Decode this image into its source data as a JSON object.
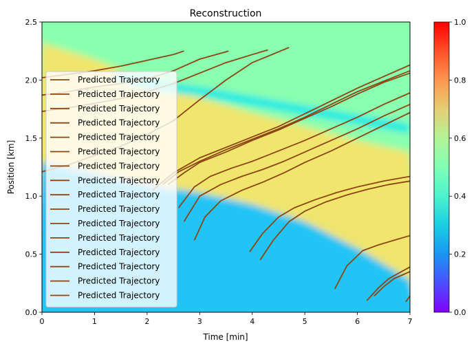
{
  "chart_data": {
    "type": "heatmap",
    "title": "Reconstruction",
    "xlabel": "Time [min]",
    "ylabel": "Position [km]",
    "xlim": [
      0,
      7
    ],
    "ylim": [
      0,
      2.5
    ],
    "xticks": [
      0,
      1,
      2,
      3,
      4,
      5,
      6,
      7
    ],
    "yticks": [
      0.0,
      0.5,
      1.0,
      1.5,
      2.0,
      2.5
    ],
    "colorbar": {
      "colormap": "rainbow",
      "range": [
        0.0,
        1.0
      ],
      "ticks": [
        0.0,
        0.2,
        0.4,
        0.6,
        0.8,
        1.0
      ]
    },
    "heatmap_regions": {
      "top_band_value": 0.52,
      "dense_band_value": 0.72,
      "narrow_dip_value": 0.3,
      "low_region_value": 0.18
    },
    "legend": {
      "placement": "lower left",
      "entries": [
        "Predicted Trajectory",
        "Predicted Trajectory",
        "Predicted Trajectory",
        "Predicted Trajectory",
        "Predicted Trajectory",
        "Predicted Trajectory",
        "Predicted Trajectory",
        "Predicted Trajectory",
        "Predicted Trajectory",
        "Predicted Trajectory",
        "Predicted Trajectory",
        "Predicted Trajectory",
        "Predicted Trajectory",
        "Predicted Trajectory",
        "Predicted Trajectory",
        "Predicted Trajectory"
      ]
    },
    "line_color": "#8B4513",
    "series": [
      {
        "x": [
          0,
          0.5,
          1,
          1.5,
          2,
          2.5,
          2.7
        ],
        "y": [
          2.02,
          2.05,
          2.08,
          2.12,
          2.17,
          2.22,
          2.25
        ]
      },
      {
        "x": [
          0,
          0.5,
          1,
          1.5,
          2,
          2.5,
          3,
          3.55
        ],
        "y": [
          1.87,
          1.9,
          1.94,
          1.97,
          2.01,
          2.08,
          2.18,
          2.25
        ]
      },
      {
        "x": [
          0,
          0.5,
          1,
          1.5,
          2,
          2.5,
          3,
          3.5,
          4,
          4.3
        ],
        "y": [
          1.73,
          1.76,
          1.8,
          1.84,
          1.9,
          1.97,
          2.06,
          2.15,
          2.22,
          2.26
        ]
      },
      {
        "x": [
          0,
          0.5,
          1,
          1.5,
          2,
          2.5,
          3,
          3.5,
          4,
          4.7
        ],
        "y": [
          1.21,
          1.27,
          1.35,
          1.43,
          1.53,
          1.65,
          1.83,
          2.0,
          2.15,
          2.28
        ]
      },
      {
        "x": [
          2.1,
          2.5,
          3,
          3.5,
          4,
          4.5,
          5,
          5.5,
          6,
          6.5,
          7
        ],
        "y": [
          1.05,
          1.2,
          1.33,
          1.42,
          1.51,
          1.6,
          1.71,
          1.82,
          1.93,
          2.03,
          2.13
        ]
      },
      {
        "x": [
          2.3,
          2.6,
          3,
          3.5,
          4,
          4.5,
          5,
          5.5,
          6,
          6.5,
          7
        ],
        "y": [
          1.1,
          1.21,
          1.3,
          1.4,
          1.49,
          1.58,
          1.68,
          1.79,
          1.9,
          1.99,
          2.08
        ]
      },
      {
        "x": [
          2.4,
          2.7,
          3,
          3.5,
          4,
          4.5,
          5,
          5.5,
          6,
          6.5,
          7
        ],
        "y": [
          1.1,
          1.2,
          1.29,
          1.38,
          1.48,
          1.57,
          1.67,
          1.77,
          1.88,
          1.98,
          2.06
        ]
      },
      {
        "x": [
          2.6,
          2.9,
          3.2,
          3.6,
          4,
          4.5,
          5,
          5.5,
          6,
          6.5,
          7
        ],
        "y": [
          0.9,
          1.08,
          1.17,
          1.24,
          1.3,
          1.39,
          1.48,
          1.58,
          1.68,
          1.79,
          1.89
        ]
      },
      {
        "x": [
          2.7,
          3,
          3.4,
          3.8,
          4.2,
          4.6,
          5,
          5.5,
          6,
          6.5,
          7
        ],
        "y": [
          0.78,
          1.0,
          1.1,
          1.17,
          1.23,
          1.3,
          1.38,
          1.48,
          1.58,
          1.69,
          1.79
        ]
      },
      {
        "x": [
          2.9,
          3.1,
          3.4,
          3.8,
          4.2,
          4.6,
          5,
          5.5,
          6,
          6.5,
          7
        ],
        "y": [
          0.62,
          0.82,
          0.96,
          1.05,
          1.12,
          1.2,
          1.29,
          1.39,
          1.5,
          1.61,
          1.72
        ]
      },
      {
        "x": [
          3.95,
          4.2,
          4.5,
          4.8,
          5.2,
          5.6,
          6,
          6.5,
          7
        ],
        "y": [
          0.52,
          0.68,
          0.82,
          0.9,
          0.97,
          1.03,
          1.08,
          1.13,
          1.17
        ]
      },
      {
        "x": [
          4.15,
          4.4,
          4.7,
          5,
          5.4,
          5.8,
          6.2,
          6.6,
          7
        ],
        "y": [
          0.45,
          0.62,
          0.78,
          0.87,
          0.95,
          1.01,
          1.06,
          1.1,
          1.13
        ]
      },
      {
        "x": [
          5.57,
          5.8,
          6.1,
          6.4,
          6.7,
          7
        ],
        "y": [
          0.2,
          0.4,
          0.53,
          0.58,
          0.62,
          0.66
        ]
      },
      {
        "x": [
          6.18,
          6.4,
          6.6,
          6.8,
          7
        ],
        "y": [
          0.1,
          0.21,
          0.29,
          0.34,
          0.39
        ]
      },
      {
        "x": [
          6.32,
          6.5,
          6.7,
          6.85,
          7
        ],
        "y": [
          0.14,
          0.22,
          0.29,
          0.32,
          0.35
        ]
      },
      {
        "x": [
          6.92,
          6.97,
          7
        ],
        "y": [
          0.09,
          0.12,
          0.14
        ]
      }
    ]
  }
}
